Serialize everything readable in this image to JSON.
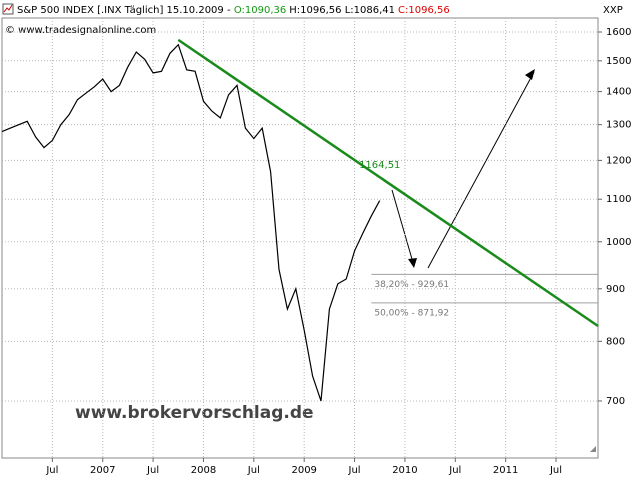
{
  "chart_data": {
    "type": "line",
    "title": "S&P 500 INDEX [.INX Täglich] 15.10.2009 -",
    "quote": [
      {
        "text": "O:1090,36",
        "color": "#119911"
      },
      {
        "text": "H:1096,56 L:1086,41",
        "color": "#000000"
      },
      {
        "text": "C:1096,56",
        "color": "#dd0000"
      }
    ],
    "source": "© www.tradesignalonline.com",
    "exchange": "XXP",
    "watermark": "www.brokervorschlag.de",
    "log_scale": true,
    "grid": true,
    "color": "#000000",
    "xlim": [
      "2006-01",
      "2011-12"
    ],
    "ylim": [
      616,
      1651
    ],
    "yticks": [
      700,
      800,
      900,
      1000,
      1100,
      1200,
      1300,
      1400,
      1500,
      1600
    ],
    "xticks": [
      {
        "value": "2006-07",
        "label": "Jul"
      },
      {
        "value": "2007-01",
        "label": "2007"
      },
      {
        "value": "2007-07",
        "label": "Jul"
      },
      {
        "value": "2008-01",
        "label": "2008"
      },
      {
        "value": "2008-07",
        "label": "Jul"
      },
      {
        "value": "2009-01",
        "label": "2009"
      },
      {
        "value": "2009-07",
        "label": "Jul"
      },
      {
        "value": "2010-01",
        "label": "2010"
      },
      {
        "value": "2010-07",
        "label": "Jul"
      },
      {
        "value": "2011-01",
        "label": "2011"
      },
      {
        "value": "2011-07",
        "label": "Jul"
      }
    ],
    "x": [
      "2006-01",
      "2006-02",
      "2006-03",
      "2006-04",
      "2006-05",
      "2006-06",
      "2006-07",
      "2006-08",
      "2006-09",
      "2006-10",
      "2006-11",
      "2006-12",
      "2007-01",
      "2007-02",
      "2007-03",
      "2007-04",
      "2007-05",
      "2007-06",
      "2007-07",
      "2007-08",
      "2007-09",
      "2007-10",
      "2007-11",
      "2007-12",
      "2008-01",
      "2008-02",
      "2008-03",
      "2008-04",
      "2008-05",
      "2008-06",
      "2008-07",
      "2008-08",
      "2008-09",
      "2008-10",
      "2008-11",
      "2008-12",
      "2009-01",
      "2009-02",
      "2009-03",
      "2009-04",
      "2009-05",
      "2009-06",
      "2009-07",
      "2009-08",
      "2009-09",
      "2009-10"
    ],
    "values": [
      1280,
      1290,
      1300,
      1310,
      1265,
      1235,
      1255,
      1300,
      1330,
      1375,
      1395,
      1415,
      1440,
      1400,
      1420,
      1480,
      1530,
      1505,
      1460,
      1465,
      1525,
      1555,
      1470,
      1465,
      1370,
      1340,
      1320,
      1390,
      1420,
      1290,
      1260,
      1290,
      1170,
      940,
      860,
      900,
      820,
      740,
      700,
      860,
      910,
      920,
      980,
      1020,
      1060,
      1096.56
    ],
    "trendline": {
      "color": "#1a8a1a",
      "x": [
        "2007-10",
        "2011-12"
      ],
      "values": [
        1572,
        828
      ]
    },
    "trend_label": {
      "x": "2009-10",
      "value": 1164.51,
      "label": "1164,51"
    },
    "levels": [
      {
        "x": "2009-09",
        "value": 929.61,
        "label": "38,20% - 929,61"
      },
      {
        "x": "2009-09",
        "value": 871.92,
        "label": "50,00% - 871,92"
      }
    ]
  }
}
